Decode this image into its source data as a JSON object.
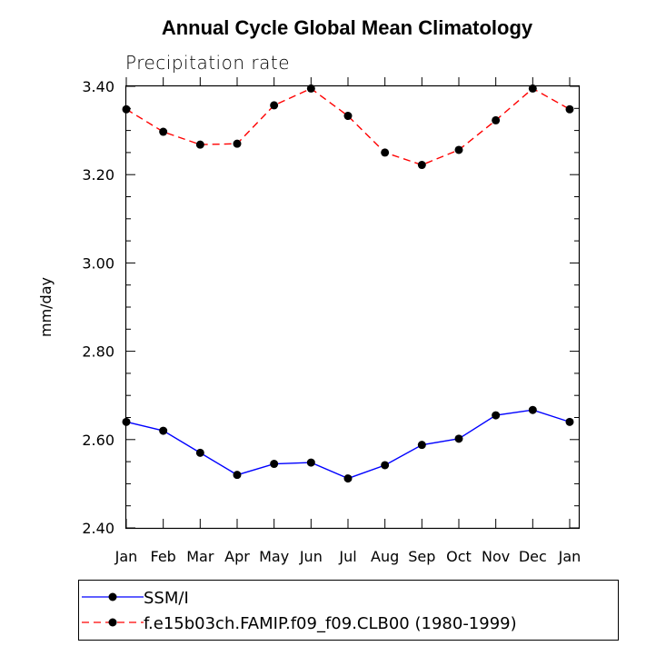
{
  "chart_data": {
    "type": "line",
    "title": "Annual Cycle Global Mean Climatology",
    "subtitle": "Precipitation rate",
    "xlabel": "",
    "ylabel": "mm/day",
    "categories": [
      "Jan",
      "Feb",
      "Mar",
      "Apr",
      "May",
      "Jun",
      "Jul",
      "Aug",
      "Sep",
      "Oct",
      "Nov",
      "Dec",
      "Jan"
    ],
    "ylim": [
      2.4,
      3.4
    ],
    "yticks": [
      "2.40",
      "2.60",
      "2.80",
      "3.00",
      "3.20",
      "3.40"
    ],
    "series": [
      {
        "name": "SSM/I",
        "color": "#0000ff",
        "dash": "solid",
        "values": [
          2.64,
          2.62,
          2.57,
          2.52,
          2.545,
          2.548,
          2.512,
          2.542,
          2.588,
          2.602,
          2.655,
          2.667,
          2.64
        ]
      },
      {
        "name": "f.e15b03ch.FAMIP.f09_f09.CLB00 (1980-1999)",
        "color": "#ff0000",
        "dash": "dashed",
        "values": [
          3.348,
          3.297,
          3.268,
          3.27,
          3.357,
          3.395,
          3.333,
          3.25,
          3.222,
          3.256,
          3.323,
          3.395,
          3.348
        ]
      }
    ],
    "legend_placement": "bottom-left"
  }
}
